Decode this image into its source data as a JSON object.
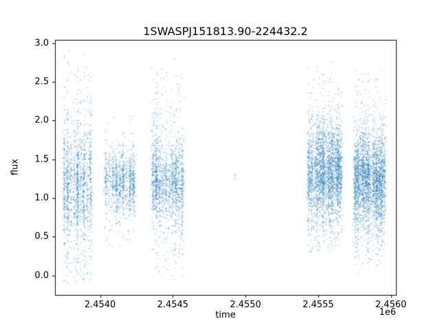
{
  "chart_data": {
    "type": "scatter",
    "title": "1SWASPJ151813.90-224432.2",
    "xlabel": "time",
    "ylabel": "flux",
    "x_offset_text": "1e6",
    "xlim": [
      2453690,
      2456035
    ],
    "ylim": [
      -0.25,
      3.04
    ],
    "x_ticks": [
      2454000,
      2454500,
      2455000,
      2455500,
      2456000
    ],
    "x_tick_labels": [
      "2.4540",
      "2.4545",
      "2.4550",
      "2.4555",
      "2.4560"
    ],
    "y_ticks": [
      0.0,
      0.5,
      1.0,
      1.5,
      2.0,
      2.5,
      3.0
    ],
    "y_tick_labels": [
      "0.0",
      "0.5",
      "1.0",
      "1.5",
      "2.0",
      "2.5",
      "3.0"
    ],
    "grid": false,
    "legend": false,
    "background_color": "#ffffff",
    "frame_color": "#000000",
    "marker_color": "#1f77b4",
    "marker_alpha": 0.5,
    "marker_size": 1.3,
    "seed": 42,
    "clusters": [
      {
        "name": "season-1",
        "x_center": 2453845,
        "x_halfwidth": 90,
        "n_points": 1600,
        "n_nights": 9,
        "flux_mean": 1.15,
        "flux_sigma_core": 0.33,
        "flux_sigma_tail": 0.8,
        "tail_fraction": 0.38,
        "flux_min": -0.12,
        "flux_max": 2.9
      },
      {
        "name": "season-2",
        "x_center": 2454135,
        "x_halfwidth": 95,
        "n_points": 1100,
        "n_nights": 9,
        "flux_mean": 1.2,
        "flux_sigma_core": 0.18,
        "flux_sigma_tail": 0.38,
        "tail_fraction": 0.3,
        "flux_min": 0.28,
        "flux_max": 2.05
      },
      {
        "name": "season-3",
        "x_center": 2454465,
        "x_halfwidth": 100,
        "n_points": 1700,
        "n_nights": 10,
        "flux_mean": 1.2,
        "flux_sigma_core": 0.23,
        "flux_sigma_tail": 0.65,
        "tail_fraction": 0.32,
        "flux_min": -0.05,
        "flux_max": 2.9
      },
      {
        "name": "season-4",
        "x_center": 2454930,
        "x_halfwidth": 6,
        "n_points": 5,
        "n_nights": 1,
        "flux_mean": 1.26,
        "flux_sigma_core": 0.05,
        "flux_sigma_tail": 0.05,
        "tail_fraction": 0.0,
        "flux_min": 1.15,
        "flux_max": 1.35
      },
      {
        "name": "season-5",
        "x_center": 2455545,
        "x_halfwidth": 110,
        "n_points": 3000,
        "n_nights": 12,
        "flux_mean": 1.3,
        "flux_sigma_core": 0.28,
        "flux_sigma_tail": 0.52,
        "tail_fraction": 0.35,
        "flux_min": 0.3,
        "flux_max": 2.78
      },
      {
        "name": "season-6",
        "x_center": 2455855,
        "x_halfwidth": 100,
        "n_points": 3000,
        "n_nights": 12,
        "flux_mean": 1.22,
        "flux_sigma_core": 0.27,
        "flux_sigma_tail": 0.52,
        "tail_fraction": 0.35,
        "flux_min": 0.02,
        "flux_max": 2.72
      }
    ]
  }
}
